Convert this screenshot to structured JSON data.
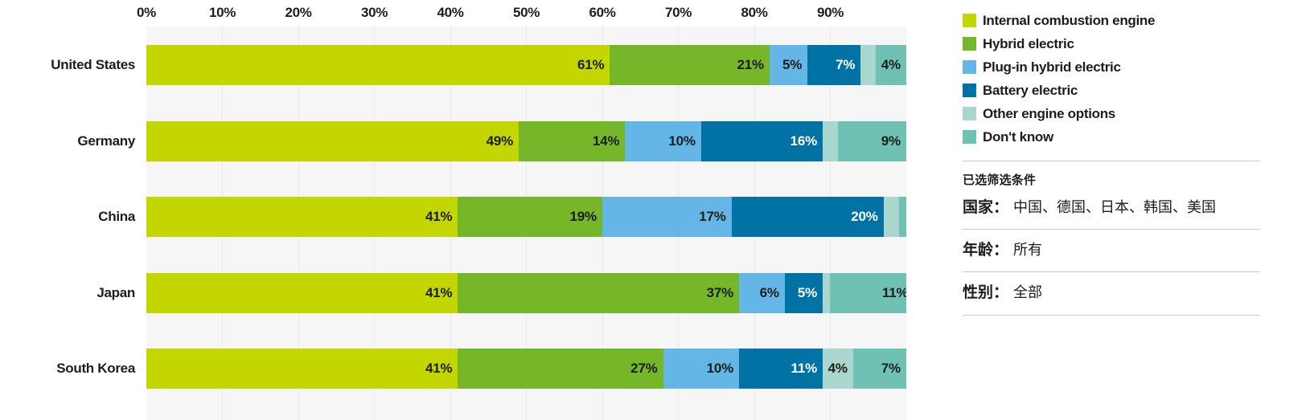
{
  "chart_data": {
    "type": "bar",
    "variant": "horizontal-stacked",
    "unit": "%",
    "xlim": [
      0,
      100
    ],
    "grid": true,
    "x_ticks": [
      "0%",
      "10%",
      "20%",
      "30%",
      "40%",
      "50%",
      "60%",
      "70%",
      "80%",
      "90%"
    ],
    "categories": [
      "United States",
      "Germany",
      "China",
      "Japan",
      "South Korea"
    ],
    "series": [
      {
        "name": "Internal combustion engine",
        "color": "#c3d600",
        "values": [
          61,
          49,
          41,
          41,
          41
        ],
        "labels": [
          "61%",
          "49%",
          "41%",
          "41%",
          "41%"
        ]
      },
      {
        "name": "Hybrid electric",
        "color": "#76b72a",
        "values": [
          21,
          14,
          19,
          37,
          27
        ],
        "labels": [
          "21%",
          "14%",
          "19%",
          "37%",
          "27%"
        ]
      },
      {
        "name": "Plug-in hybrid electric",
        "color": "#63b6e6",
        "values": [
          5,
          10,
          17,
          6,
          10
        ],
        "labels": [
          "5%",
          "10%",
          "17%",
          "6%",
          "10%"
        ]
      },
      {
        "name": "Battery electric",
        "color": "#0072a4",
        "text_color": "#ffffff",
        "values": [
          7,
          16,
          20,
          5,
          11
        ],
        "labels": [
          "7%",
          "16%",
          "20%",
          "5%",
          "11%"
        ]
      },
      {
        "name": "Other engine options",
        "color": "#a9d6ce",
        "values": [
          2,
          2,
          2,
          1,
          4
        ],
        "labels": [
          null,
          null,
          null,
          null,
          "4%"
        ]
      },
      {
        "name": "Don't know",
        "color": "#6fc2b3",
        "values": [
          4,
          9,
          1,
          11,
          7
        ],
        "labels": [
          "4%",
          "9%",
          null,
          "11%",
          "7%"
        ]
      }
    ],
    "legend_position": "right"
  },
  "filters": {
    "header": "已选筛选条件",
    "rows": [
      {
        "label": "国家：",
        "value": "中国、德国、日本、韩国、美国"
      },
      {
        "label": "年龄：",
        "value": "所有"
      },
      {
        "label": "性别：",
        "value": "全部"
      }
    ]
  },
  "ui_colors": {
    "text": "#1d1d1b",
    "value_label_on_dark": "#ffffff",
    "plot_background": "#f6f6f6",
    "gridline": "#e8e8e8",
    "divider": "#c9c9c9",
    "page_background": "#ffffff"
  }
}
